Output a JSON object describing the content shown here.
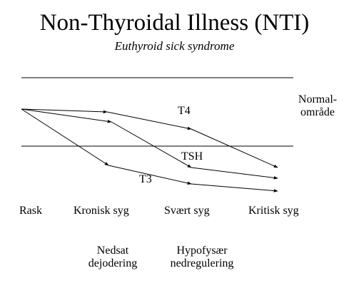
{
  "title": "Non-Thyroidal Illness (NTI)",
  "subtitle": "Euthyroid sick syndrome",
  "normal_range": {
    "line1": "Normal-",
    "line2": "område"
  },
  "curves": {
    "t4": "T4",
    "tsh": "TSH",
    "t3": "T3"
  },
  "stages": [
    "Rask",
    "Kronisk syg",
    "Svært syg",
    "Kritisk syg"
  ],
  "mechanisms": [
    {
      "line1": "Nedsat",
      "line2": "dejodering"
    },
    {
      "line1": "Hypofysær",
      "line2": "nedregulering"
    }
  ],
  "colors": {
    "ink": "#000000",
    "background": "#ffffff"
  }
}
